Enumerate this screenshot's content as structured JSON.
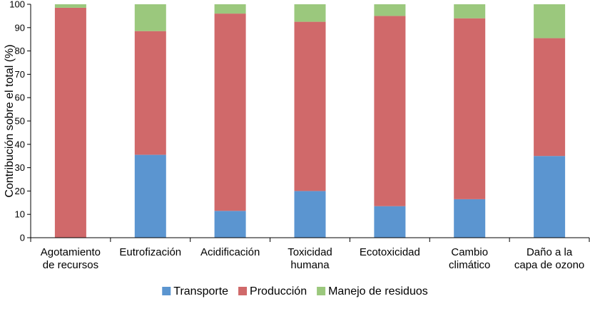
{
  "chart_data": {
    "type": "bar",
    "stacked": true,
    "title": "",
    "xlabel": "",
    "ylabel": "Contribución sobre el total (%)",
    "ylim": [
      0,
      100
    ],
    "yticks": [
      0,
      10,
      20,
      30,
      40,
      50,
      60,
      70,
      80,
      90,
      100
    ],
    "grid": false,
    "legend_position": "bottom",
    "categories": [
      [
        "Agotamiento",
        "de recursos"
      ],
      [
        "Eutrofización"
      ],
      [
        "Acidificación"
      ],
      [
        "Toxicidad",
        "humana"
      ],
      [
        "Ecotoxicidad"
      ],
      [
        "Cambio",
        "climático"
      ],
      [
        "Daño a la",
        "capa de ozono"
      ]
    ],
    "series": [
      {
        "name": "Transporte",
        "color": "#5B95D0",
        "values": [
          0,
          35.5,
          11.5,
          20,
          13.5,
          16.5,
          35
        ]
      },
      {
        "name": "Producción",
        "color": "#D0696A",
        "values": [
          98.5,
          53,
          84.5,
          72.5,
          81.5,
          77.5,
          50.5
        ]
      },
      {
        "name": "Manejo de residuos",
        "color": "#9BC87D",
        "values": [
          1.5,
          11.5,
          4,
          7.5,
          5,
          6,
          14.5
        ]
      }
    ]
  }
}
